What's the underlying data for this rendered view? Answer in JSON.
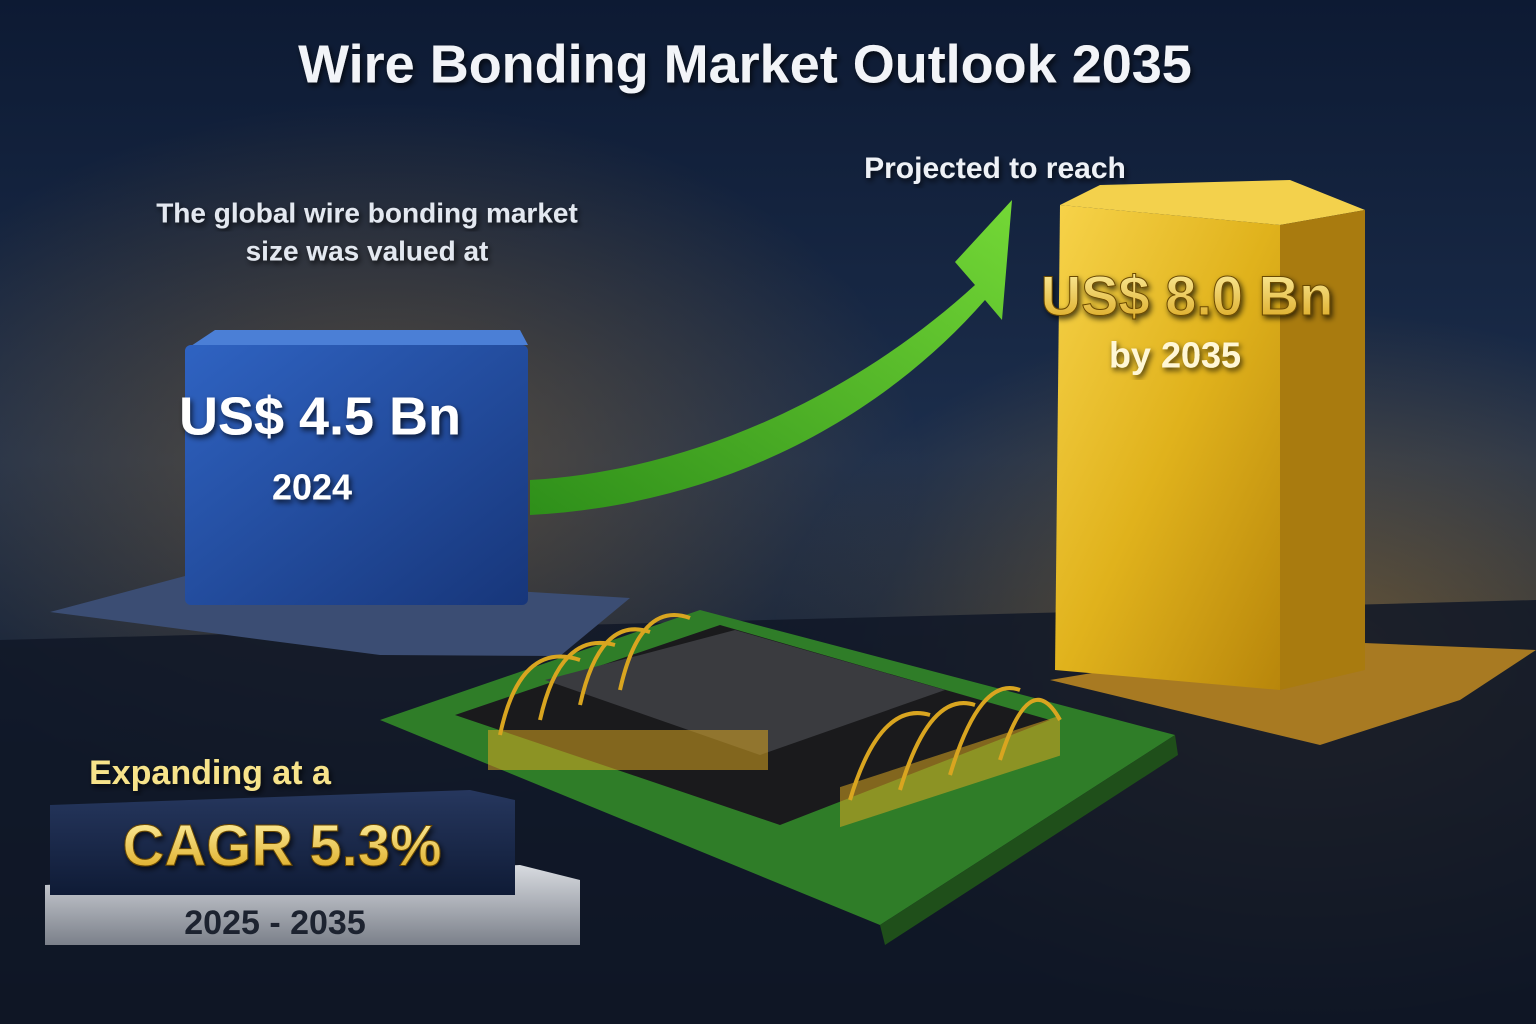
{
  "title": "Wire Bonding Market Outlook 2035",
  "start": {
    "intro": [
      "The global wire bonding market",
      "size was valued at"
    ],
    "value": "US$ 4.5 Bn",
    "year": "2024"
  },
  "end": {
    "intro": "Projected to reach",
    "value": "US$ 8.0 Bn",
    "year": "by 2035"
  },
  "growth": {
    "intro": "Expanding at a",
    "value": "CAGR 5.3%",
    "period": "2025 - 2035"
  }
}
